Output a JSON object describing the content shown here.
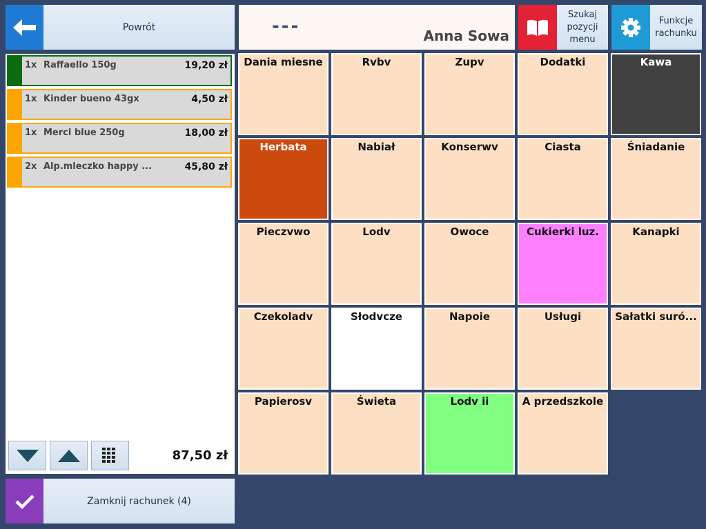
{
  "header": {
    "back_label": "Powrót",
    "dashes": "---",
    "user_name": "Anna Sowa",
    "search_menu_label": "Szukaj\npozycji\nmenu",
    "bill_functions_label": "Funkcje\nrachunku",
    "icons": {
      "back": "arrow-left-icon",
      "search": "book-icon",
      "functions": "gear-icon"
    }
  },
  "order": {
    "items": [
      {
        "qty": "1x",
        "name": "Raffaello 150g",
        "price": "19,20 zł",
        "stripe_color": "#0a6b10",
        "border_color": "#0a6b10"
      },
      {
        "qty": "1x",
        "name": "Kinder bueno 43gx",
        "price": "4,50 zł",
        "stripe_color": "#ffa500",
        "border_color": "#ffa500"
      },
      {
        "qty": "1x",
        "name": "Merci blue 250g",
        "price": "18,00 zł",
        "stripe_color": "#ffa500",
        "border_color": "#ffa500"
      },
      {
        "qty": "2x",
        "name": "Alp.mleczko happy ...",
        "price": "45,80 zł",
        "stripe_color": "#ffa500",
        "border_color": "#ffa500"
      }
    ],
    "total": "87,50 zł",
    "icons": {
      "down": "triangle-down-icon",
      "up": "triangle-up-icon",
      "keypad": "keypad-icon"
    }
  },
  "close_bill": {
    "label": "Zamknij rachunek  (4)",
    "icon": "check-icon"
  },
  "categories": [
    {
      "label": "Dania miesne",
      "bg": "#fde0c4",
      "fg": "#111111"
    },
    {
      "label": "Rvbv",
      "bg": "#fde0c4",
      "fg": "#111111"
    },
    {
      "label": "Zupv",
      "bg": "#fde0c4",
      "fg": "#111111"
    },
    {
      "label": "Dodatki",
      "bg": "#fde0c4",
      "fg": "#111111"
    },
    {
      "label": "Kawa",
      "bg": "#404040",
      "fg": "#ffffff"
    },
    {
      "label": "Herbata",
      "bg": "#cc4a0e",
      "fg": "#ffffff"
    },
    {
      "label": "Nabiał",
      "bg": "#fde0c4",
      "fg": "#111111"
    },
    {
      "label": "Konserwv",
      "bg": "#fde0c4",
      "fg": "#111111"
    },
    {
      "label": "Ciasta",
      "bg": "#fde0c4",
      "fg": "#111111"
    },
    {
      "label": "Śniadanie",
      "bg": "#fde0c4",
      "fg": "#111111"
    },
    {
      "label": "Pieczvwo",
      "bg": "#fde0c4",
      "fg": "#111111"
    },
    {
      "label": "Lodv",
      "bg": "#fde0c4",
      "fg": "#111111"
    },
    {
      "label": "Owoce",
      "bg": "#fde0c4",
      "fg": "#111111"
    },
    {
      "label": "Cukierki luz.",
      "bg": "#ff80fe",
      "fg": "#111111"
    },
    {
      "label": "Kanapki",
      "bg": "#fde0c4",
      "fg": "#111111"
    },
    {
      "label": "Czekoladv",
      "bg": "#fde0c4",
      "fg": "#111111"
    },
    {
      "label": "Słodvcze",
      "bg": "#ffffff",
      "fg": "#111111"
    },
    {
      "label": "Napoie",
      "bg": "#fde0c4",
      "fg": "#111111"
    },
    {
      "label": "Usługi",
      "bg": "#fde0c4",
      "fg": "#111111"
    },
    {
      "label": "Sałatki suró...",
      "bg": "#fde0c4",
      "fg": "#111111"
    },
    {
      "label": "Papierosv",
      "bg": "#fde0c4",
      "fg": "#111111"
    },
    {
      "label": "Świeta",
      "bg": "#fde0c4",
      "fg": "#111111"
    },
    {
      "label": "Lodv ii",
      "bg": "#80ff80",
      "fg": "#111111"
    },
    {
      "label": "A przedszkole",
      "bg": "#fde0c4",
      "fg": "#111111"
    }
  ]
}
